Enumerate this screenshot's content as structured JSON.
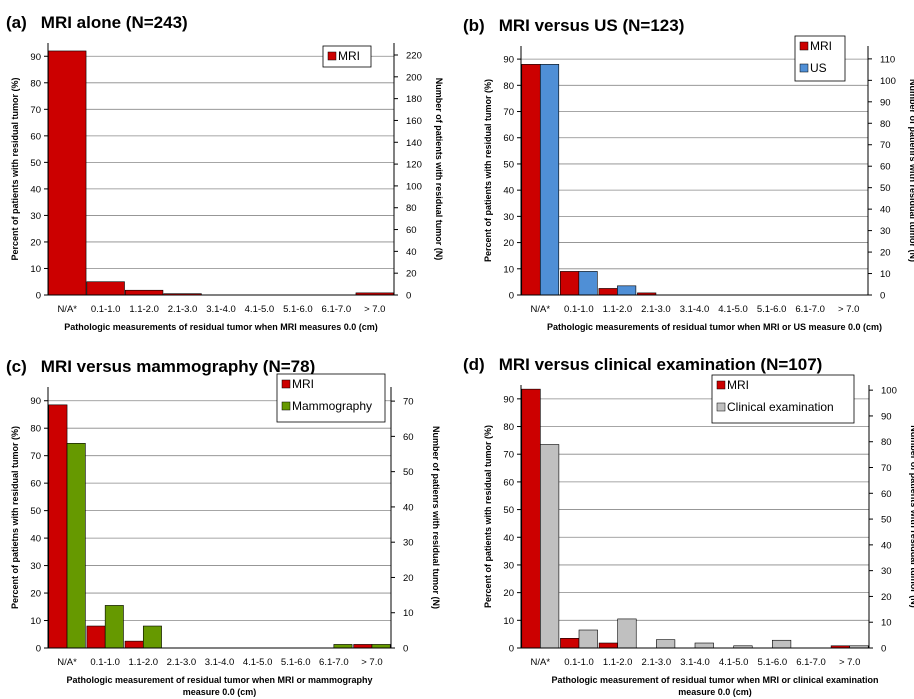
{
  "charts": [
    {
      "letter": "(a)",
      "title": "MRI alone (N=243)",
      "ylabel": "Percent of patients with residual tumor (%)",
      "y2label": "Number of patients with residual tumor (N)",
      "xlabel": [
        "Pathologic measurements of residual tumor when MRI measures 0.0 (cm)"
      ],
      "y2ticks": [
        "0",
        "20",
        "40",
        "60",
        "80",
        "100",
        "120",
        "140",
        "160",
        "180",
        "200",
        "220"
      ],
      "legend": [
        "MRI"
      ]
    },
    {
      "letter": "(b)",
      "title": "MRI versus US (N=123)",
      "ylabel": "Percent of patients with residual tumor (%)",
      "y2label": "Number of patienrs with residual tumor (N)",
      "xlabel": [
        "Pathologic measurements of residual tumor when MRI or US measure 0.0 (cm)"
      ],
      "y2ticks": [
        "0",
        "10",
        "20",
        "30",
        "40",
        "50",
        "60",
        "70",
        "80",
        "90",
        "100",
        "110"
      ],
      "legend": [
        "MRI",
        "US"
      ]
    },
    {
      "letter": "(c)",
      "title": "MRI versus mammography (N=78)",
      "ylabel": "Percent of patietns with residual tumor (%)",
      "y2label": "Number of patienrs with residual tumor (N)",
      "xlabel": [
        "Pathologic measurement of residual tumor when MRI or mammography",
        "measure 0.0 (cm)"
      ],
      "y2ticks": [
        "0",
        "10",
        "20",
        "30",
        "40",
        "50",
        "60",
        "70"
      ],
      "legend": [
        "MRI",
        "Mammography"
      ]
    },
    {
      "letter": "(d)",
      "title": "MRI versus clinical examination (N=107)",
      "ylabel": "Percent of patients with residual tumor (%)",
      "y2label": "Number of patients with residual tumor (N)",
      "xlabel": [
        "Pathologic measurement of residual tumor when MRI or clinical examination",
        "measure 0.0 (cm)"
      ],
      "y2ticks": [
        "0",
        "10",
        "20",
        "30",
        "40",
        "50",
        "60",
        "70",
        "80",
        "90",
        "100"
      ],
      "legend": [
        "MRI",
        "Clinical examination"
      ]
    }
  ],
  "chart_data": [
    {
      "type": "bar",
      "categories": [
        "N/A*",
        "0.1-1.0",
        "1.1-2.0",
        "2.1-3.0",
        "3.1-4.0",
        "4.1-5.0",
        "5.1-6.0",
        "6.1-7.0",
        "> 7.0"
      ],
      "ylim": [
        0,
        95
      ],
      "yticks": [
        0,
        10,
        20,
        30,
        40,
        50,
        60,
        70,
        80,
        90
      ],
      "y2lim": [
        0,
        231
      ],
      "series": [
        {
          "name": "MRI",
          "color": "#cc0000",
          "values": [
            92,
            5,
            1.8,
            0.5,
            0,
            0,
            0,
            0,
            0.8
          ]
        }
      ]
    },
    {
      "type": "bar",
      "categories": [
        "N/A*",
        "0.1-1.0",
        "1.1-2.0",
        "2.1-3.0",
        "3.1-4.0",
        "4.1-5.0",
        "5.1-6.0",
        "6.1-7.0",
        "> 7.0"
      ],
      "ylim": [
        0,
        95
      ],
      "yticks": [
        0,
        10,
        20,
        30,
        40,
        50,
        60,
        70,
        80,
        90
      ],
      "y2lim": [
        0,
        116
      ],
      "series": [
        {
          "name": "MRI",
          "color": "#cc0000",
          "values": [
            88,
            9,
            2.5,
            0.8,
            0,
            0,
            0,
            0,
            0
          ]
        },
        {
          "name": "US",
          "color": "#4f8fd6",
          "values": [
            88,
            9,
            3.5,
            0,
            0,
            0,
            0,
            0,
            0
          ]
        }
      ]
    },
    {
      "type": "bar",
      "categories": [
        "N/A*",
        "0.1-1.0",
        "1.1-2.0",
        "2.1-3.0",
        "3.1-4.0",
        "4.1-5.0",
        "5.1-6.0",
        "6.1-7.0",
        "> 7.0"
      ],
      "ylim": [
        0,
        95
      ],
      "yticks": [
        0,
        10,
        20,
        30,
        40,
        50,
        60,
        70,
        80,
        90
      ],
      "y2lim": [
        0,
        74
      ],
      "series": [
        {
          "name": "MRI",
          "color": "#cc0000",
          "values": [
            88.5,
            8,
            2.5,
            0,
            0,
            0,
            0,
            0,
            1.3
          ]
        },
        {
          "name": "Mammography",
          "color": "#669900",
          "values": [
            74.5,
            15.5,
            8,
            0,
            0,
            0,
            0,
            1.3,
            1.3
          ]
        }
      ]
    },
    {
      "type": "bar",
      "categories": [
        "N/A*",
        "0.1-1.0",
        "1.1-2.0",
        "2.1-3.0",
        "3.1-4.0",
        "4.1-5.0",
        "5.1-6.0",
        "6.1-7.0",
        "> 7.0"
      ],
      "ylim": [
        0,
        95
      ],
      "yticks": [
        0,
        10,
        20,
        30,
        40,
        50,
        60,
        70,
        80,
        90
      ],
      "y2lim": [
        0,
        102
      ],
      "series": [
        {
          "name": "MRI",
          "color": "#cc0000",
          "values": [
            93.5,
            3.5,
            1.8,
            0,
            0,
            0,
            0,
            0,
            0.8
          ]
        },
        {
          "name": "Clinical examination",
          "color": "#c0c0c0",
          "values": [
            73.5,
            6.5,
            10.5,
            3,
            1.8,
            0.8,
            2.8,
            0,
            0.8
          ]
        }
      ]
    }
  ]
}
